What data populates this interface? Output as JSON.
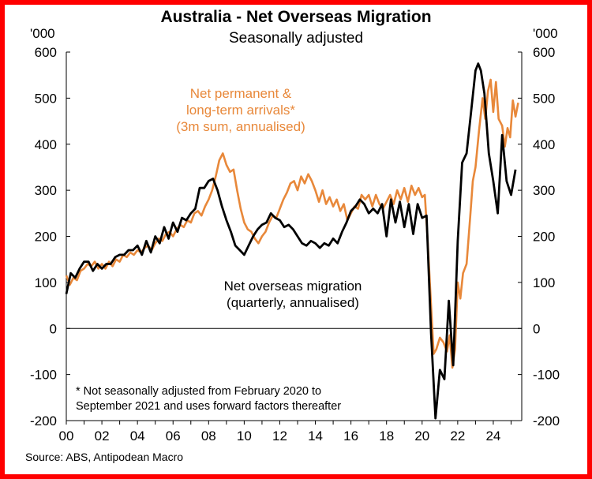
{
  "colors": {
    "frame": "#ff0000",
    "orange": "#e8883a",
    "black": "#000000"
  },
  "title": "Australia - Net Overseas Migration",
  "subtitle": "Seasonally adjusted",
  "source": "Source: ABS, Antipodean Macro",
  "chart_data": {
    "type": "line",
    "y_unit_left": "'000",
    "y_unit_right": "'000",
    "ylim": [
      -200,
      600
    ],
    "yticks": [
      -200,
      -100,
      0,
      100,
      200,
      300,
      400,
      500,
      600
    ],
    "ytick_labels": [
      "-200",
      "-100",
      "0",
      "100",
      "200",
      "300",
      "400",
      "500",
      "600"
    ],
    "xlim": [
      2000,
      2025.6
    ],
    "xticks": [
      2000,
      2002,
      2004,
      2006,
      2008,
      2010,
      2012,
      2014,
      2016,
      2018,
      2020,
      2022,
      2024
    ],
    "xtick_labels": [
      "00",
      "02",
      "04",
      "06",
      "08",
      "10",
      "12",
      "14",
      "16",
      "18",
      "20",
      "22",
      "24"
    ],
    "grid": false,
    "annotations": {
      "orange_label": [
        "Net permanent &",
        "long-term arrivals*",
        "(3m sum, annualised)"
      ],
      "black_label": [
        "Net overseas migration",
        "(quarterly, annualised)"
      ],
      "footnote": [
        "* Not seasonally adjusted from February 2020 to",
        "September 2021 and uses forward factors thereafter"
      ]
    },
    "series": [
      {
        "name": "Net permanent & long-term arrivals",
        "color": "#e8883a",
        "points": [
          [
            2000.0,
            115
          ],
          [
            2000.2,
            95
          ],
          [
            2000.4,
            110
          ],
          [
            2000.6,
            105
          ],
          [
            2000.8,
            125
          ],
          [
            2001.0,
            130
          ],
          [
            2001.2,
            140
          ],
          [
            2001.4,
            135
          ],
          [
            2001.6,
            145
          ],
          [
            2001.8,
            130
          ],
          [
            2002.0,
            140
          ],
          [
            2002.2,
            130
          ],
          [
            2002.4,
            145
          ],
          [
            2002.6,
            135
          ],
          [
            2002.8,
            150
          ],
          [
            2003.0,
            145
          ],
          [
            2003.2,
            160
          ],
          [
            2003.4,
            155
          ],
          [
            2003.6,
            165
          ],
          [
            2003.8,
            160
          ],
          [
            2004.0,
            170
          ],
          [
            2004.2,
            165
          ],
          [
            2004.4,
            175
          ],
          [
            2004.6,
            180
          ],
          [
            2004.8,
            170
          ],
          [
            2005.0,
            185
          ],
          [
            2005.2,
            195
          ],
          [
            2005.4,
            190
          ],
          [
            2005.6,
            205
          ],
          [
            2005.8,
            210
          ],
          [
            2006.0,
            200
          ],
          [
            2006.2,
            215
          ],
          [
            2006.4,
            225
          ],
          [
            2006.6,
            220
          ],
          [
            2006.8,
            235
          ],
          [
            2007.0,
            230
          ],
          [
            2007.2,
            250
          ],
          [
            2007.4,
            255
          ],
          [
            2007.6,
            245
          ],
          [
            2007.8,
            265
          ],
          [
            2008.0,
            280
          ],
          [
            2008.2,
            300
          ],
          [
            2008.4,
            330
          ],
          [
            2008.6,
            365
          ],
          [
            2008.8,
            380
          ],
          [
            2009.0,
            355
          ],
          [
            2009.2,
            340
          ],
          [
            2009.4,
            345
          ],
          [
            2009.6,
            300
          ],
          [
            2009.8,
            260
          ],
          [
            2010.0,
            230
          ],
          [
            2010.2,
            215
          ],
          [
            2010.4,
            210
          ],
          [
            2010.6,
            195
          ],
          [
            2010.8,
            185
          ],
          [
            2011.0,
            200
          ],
          [
            2011.2,
            210
          ],
          [
            2011.4,
            230
          ],
          [
            2011.6,
            245
          ],
          [
            2011.8,
            240
          ],
          [
            2012.0,
            260
          ],
          [
            2012.2,
            280
          ],
          [
            2012.4,
            295
          ],
          [
            2012.6,
            315
          ],
          [
            2012.8,
            320
          ],
          [
            2013.0,
            300
          ],
          [
            2013.2,
            330
          ],
          [
            2013.4,
            315
          ],
          [
            2013.6,
            335
          ],
          [
            2013.8,
            320
          ],
          [
            2014.0,
            300
          ],
          [
            2014.2,
            275
          ],
          [
            2014.4,
            300
          ],
          [
            2014.6,
            270
          ],
          [
            2014.8,
            285
          ],
          [
            2015.0,
            265
          ],
          [
            2015.2,
            280
          ],
          [
            2015.4,
            255
          ],
          [
            2015.6,
            270
          ],
          [
            2015.8,
            235
          ],
          [
            2016.0,
            250
          ],
          [
            2016.2,
            265
          ],
          [
            2016.4,
            260
          ],
          [
            2016.6,
            290
          ],
          [
            2016.8,
            280
          ],
          [
            2017.0,
            290
          ],
          [
            2017.2,
            265
          ],
          [
            2017.4,
            290
          ],
          [
            2017.6,
            270
          ],
          [
            2017.8,
            260
          ],
          [
            2018.0,
            275
          ],
          [
            2018.2,
            290
          ],
          [
            2018.4,
            270
          ],
          [
            2018.6,
            300
          ],
          [
            2018.8,
            280
          ],
          [
            2019.0,
            305
          ],
          [
            2019.2,
            275
          ],
          [
            2019.4,
            310
          ],
          [
            2019.6,
            290
          ],
          [
            2019.8,
            305
          ],
          [
            2020.0,
            285
          ],
          [
            2020.15,
            290
          ],
          [
            2020.3,
            200
          ],
          [
            2020.5,
            50
          ],
          [
            2020.65,
            -55
          ],
          [
            2020.8,
            -45
          ],
          [
            2021.0,
            -20
          ],
          [
            2021.2,
            -30
          ],
          [
            2021.4,
            -50
          ],
          [
            2021.55,
            -15
          ],
          [
            2021.7,
            -85
          ],
          [
            2021.85,
            -45
          ],
          [
            2022.0,
            100
          ],
          [
            2022.15,
            65
          ],
          [
            2022.3,
            120
          ],
          [
            2022.5,
            140
          ],
          [
            2022.7,
            240
          ],
          [
            2022.85,
            320
          ],
          [
            2023.0,
            350
          ],
          [
            2023.2,
            430
          ],
          [
            2023.4,
            500
          ],
          [
            2023.55,
            455
          ],
          [
            2023.7,
            515
          ],
          [
            2023.85,
            540
          ],
          [
            2024.0,
            470
          ],
          [
            2024.15,
            535
          ],
          [
            2024.3,
            455
          ],
          [
            2024.5,
            440
          ],
          [
            2024.65,
            395
          ],
          [
            2024.8,
            435
          ],
          [
            2024.95,
            415
          ],
          [
            2025.1,
            495
          ],
          [
            2025.25,
            460
          ],
          [
            2025.4,
            490
          ]
        ]
      },
      {
        "name": "Net overseas migration",
        "color": "#000000",
        "points": [
          [
            2000.0,
            75
          ],
          [
            2000.25,
            120
          ],
          [
            2000.5,
            110
          ],
          [
            2000.75,
            130
          ],
          [
            2001.0,
            145
          ],
          [
            2001.25,
            145
          ],
          [
            2001.5,
            125
          ],
          [
            2001.75,
            140
          ],
          [
            2002.0,
            130
          ],
          [
            2002.25,
            140
          ],
          [
            2002.5,
            140
          ],
          [
            2002.75,
            155
          ],
          [
            2003.0,
            160
          ],
          [
            2003.25,
            160
          ],
          [
            2003.5,
            170
          ],
          [
            2003.75,
            170
          ],
          [
            2004.0,
            180
          ],
          [
            2004.25,
            160
          ],
          [
            2004.5,
            190
          ],
          [
            2004.75,
            165
          ],
          [
            2005.0,
            200
          ],
          [
            2005.25,
            185
          ],
          [
            2005.5,
            220
          ],
          [
            2005.75,
            195
          ],
          [
            2006.0,
            230
          ],
          [
            2006.25,
            210
          ],
          [
            2006.5,
            240
          ],
          [
            2006.75,
            235
          ],
          [
            2007.0,
            250
          ],
          [
            2007.25,
            260
          ],
          [
            2007.5,
            305
          ],
          [
            2007.75,
            305
          ],
          [
            2008.0,
            320
          ],
          [
            2008.25,
            325
          ],
          [
            2008.5,
            300
          ],
          [
            2008.75,
            265
          ],
          [
            2009.0,
            235
          ],
          [
            2009.25,
            210
          ],
          [
            2009.5,
            180
          ],
          [
            2009.75,
            170
          ],
          [
            2010.0,
            160
          ],
          [
            2010.25,
            180
          ],
          [
            2010.5,
            200
          ],
          [
            2010.75,
            215
          ],
          [
            2011.0,
            225
          ],
          [
            2011.25,
            230
          ],
          [
            2011.5,
            250
          ],
          [
            2011.75,
            240
          ],
          [
            2012.0,
            235
          ],
          [
            2012.25,
            220
          ],
          [
            2012.5,
            225
          ],
          [
            2012.75,
            215
          ],
          [
            2013.0,
            200
          ],
          [
            2013.25,
            185
          ],
          [
            2013.5,
            180
          ],
          [
            2013.75,
            190
          ],
          [
            2014.0,
            185
          ],
          [
            2014.25,
            175
          ],
          [
            2014.5,
            185
          ],
          [
            2014.75,
            180
          ],
          [
            2015.0,
            195
          ],
          [
            2015.25,
            185
          ],
          [
            2015.5,
            210
          ],
          [
            2015.75,
            230
          ],
          [
            2016.0,
            255
          ],
          [
            2016.25,
            265
          ],
          [
            2016.5,
            280
          ],
          [
            2016.75,
            270
          ],
          [
            2017.0,
            250
          ],
          [
            2017.25,
            260
          ],
          [
            2017.5,
            250
          ],
          [
            2017.75,
            270
          ],
          [
            2018.0,
            200
          ],
          [
            2018.25,
            280
          ],
          [
            2018.5,
            230
          ],
          [
            2018.75,
            275
          ],
          [
            2019.0,
            220
          ],
          [
            2019.25,
            270
          ],
          [
            2019.5,
            205
          ],
          [
            2019.75,
            270
          ],
          [
            2020.0,
            240
          ],
          [
            2020.25,
            245
          ],
          [
            2020.5,
            -10
          ],
          [
            2020.75,
            -195
          ],
          [
            2021.0,
            -90
          ],
          [
            2021.25,
            -110
          ],
          [
            2021.5,
            60
          ],
          [
            2021.75,
            -80
          ],
          [
            2022.0,
            190
          ],
          [
            2022.25,
            360
          ],
          [
            2022.5,
            380
          ],
          [
            2022.75,
            470
          ],
          [
            2023.0,
            560
          ],
          [
            2023.15,
            575
          ],
          [
            2023.3,
            560
          ],
          [
            2023.5,
            510
          ],
          [
            2023.75,
            380
          ],
          [
            2024.0,
            320
          ],
          [
            2024.25,
            250
          ],
          [
            2024.5,
            420
          ],
          [
            2024.75,
            320
          ],
          [
            2025.0,
            290
          ],
          [
            2025.25,
            345
          ]
        ]
      }
    ]
  }
}
